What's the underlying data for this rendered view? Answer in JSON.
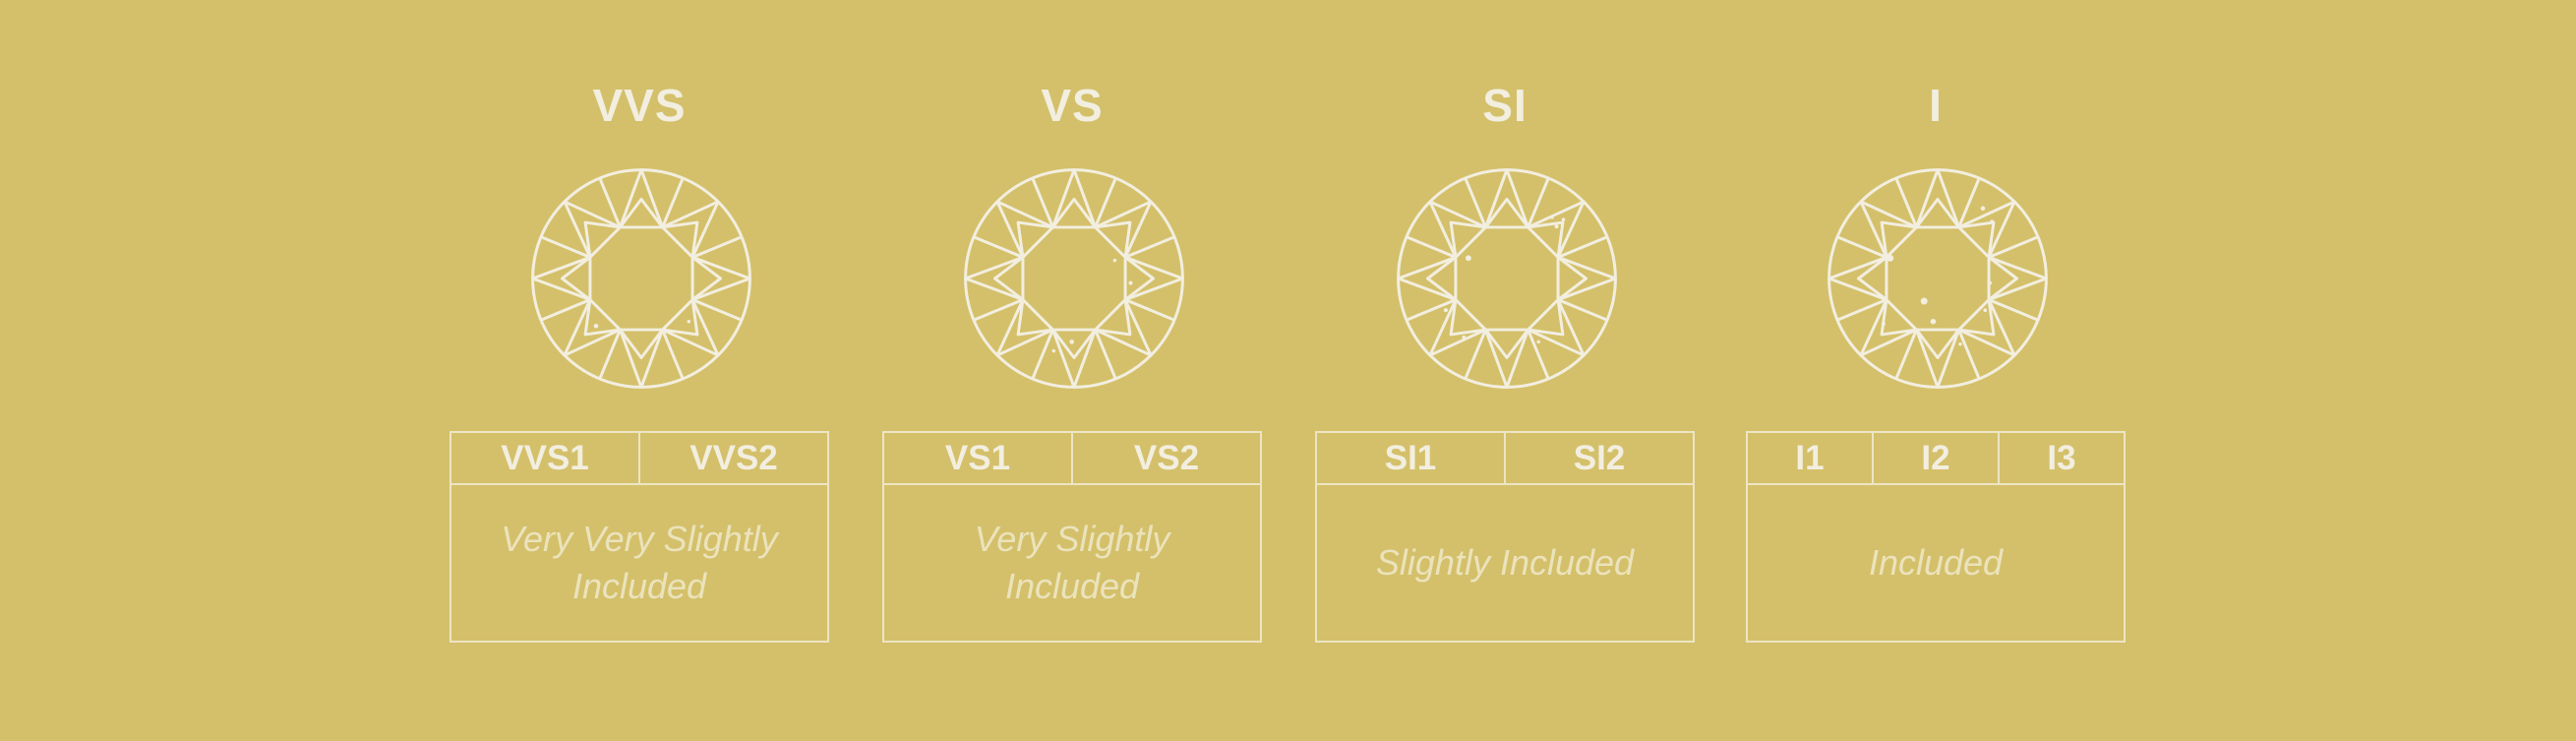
{
  "grades": [
    {
      "title": "VVS",
      "subgrades": [
        "VVS1",
        "VVS2"
      ],
      "description": "Very Very Slightly Included"
    },
    {
      "title": "VS",
      "subgrades": [
        "VS1",
        "VS2"
      ],
      "description": "Very Slightly Included"
    },
    {
      "title": "SI",
      "subgrades": [
        "SI1",
        "SI2"
      ],
      "description": "Slightly Included"
    },
    {
      "title": "I",
      "subgrades": [
        "I1",
        "I2",
        "I3"
      ],
      "description": "Included"
    }
  ],
  "colors": {
    "background": "#d4c06a",
    "line": "#f2eee0"
  },
  "icons": {
    "diamond": "round-brilliant-diamond-icon"
  }
}
